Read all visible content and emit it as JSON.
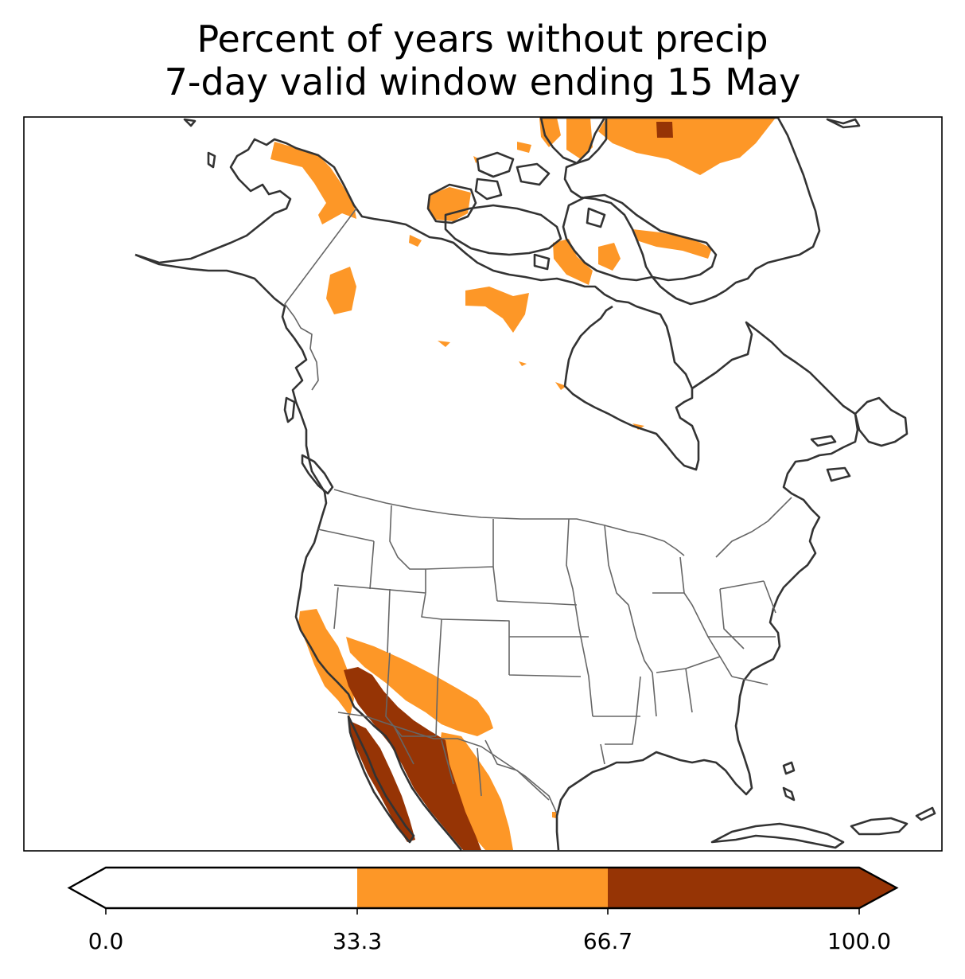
{
  "title": {
    "line1": "Percent of years without precip",
    "line2": "7-day valid window ending 15 May"
  },
  "legend": {
    "ticks": [
      "0.0",
      "33.3",
      "66.7",
      "100.0"
    ],
    "bins": [
      {
        "from": 0.0,
        "to": 33.3,
        "color": "#ffffff"
      },
      {
        "from": 33.3,
        "to": 66.7,
        "color": "#fd9727"
      },
      {
        "from": 66.7,
        "to": 100.0,
        "color": "#963405"
      }
    ],
    "extend": "both"
  },
  "colors": {
    "land_outline": "#333333",
    "state_border": "#666666",
    "frame": "#000000"
  }
}
